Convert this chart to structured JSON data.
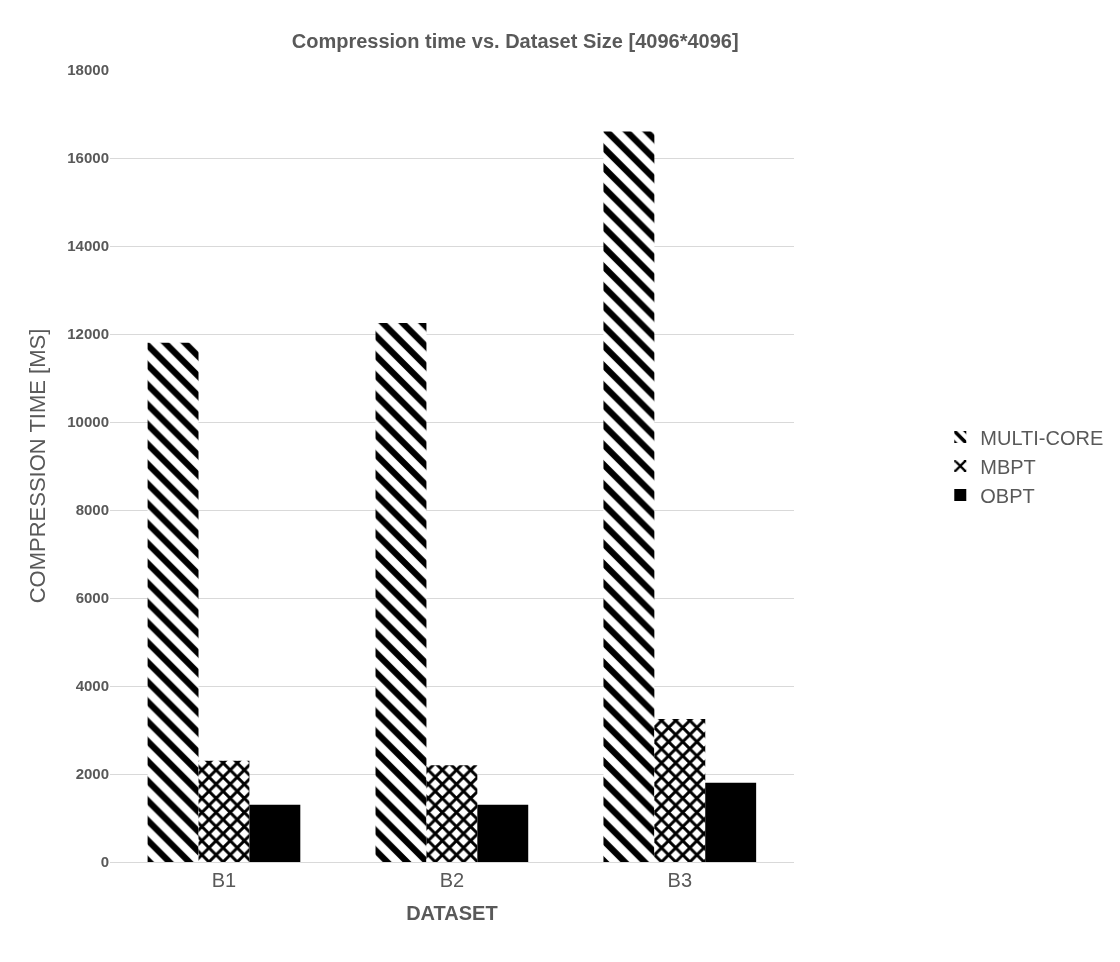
{
  "chart_data": {
    "type": "bar",
    "title": "Compression time vs. Dataset Size [4096*4096]",
    "xlabel": "DATASET",
    "ylabel": "COMPRESSION TIME [MS]",
    "categories": [
      "B1",
      "B2",
      "B3"
    ],
    "series": [
      {
        "name": "MULTI-CORE",
        "color": "#000000",
        "values": [
          11800,
          12250,
          16600
        ]
      },
      {
        "name": "MBPT",
        "color": "#000000",
        "values": [
          2300,
          2200,
          3250
        ]
      },
      {
        "name": "OBPT",
        "color": "#000000",
        "values": [
          1300,
          1300,
          1800
        ]
      }
    ],
    "ylim": [
      0,
      18000
    ],
    "yticks": [
      0,
      2000,
      4000,
      6000,
      8000,
      10000,
      12000,
      14000,
      16000,
      18000
    ],
    "grid": "y",
    "legend": "right"
  }
}
